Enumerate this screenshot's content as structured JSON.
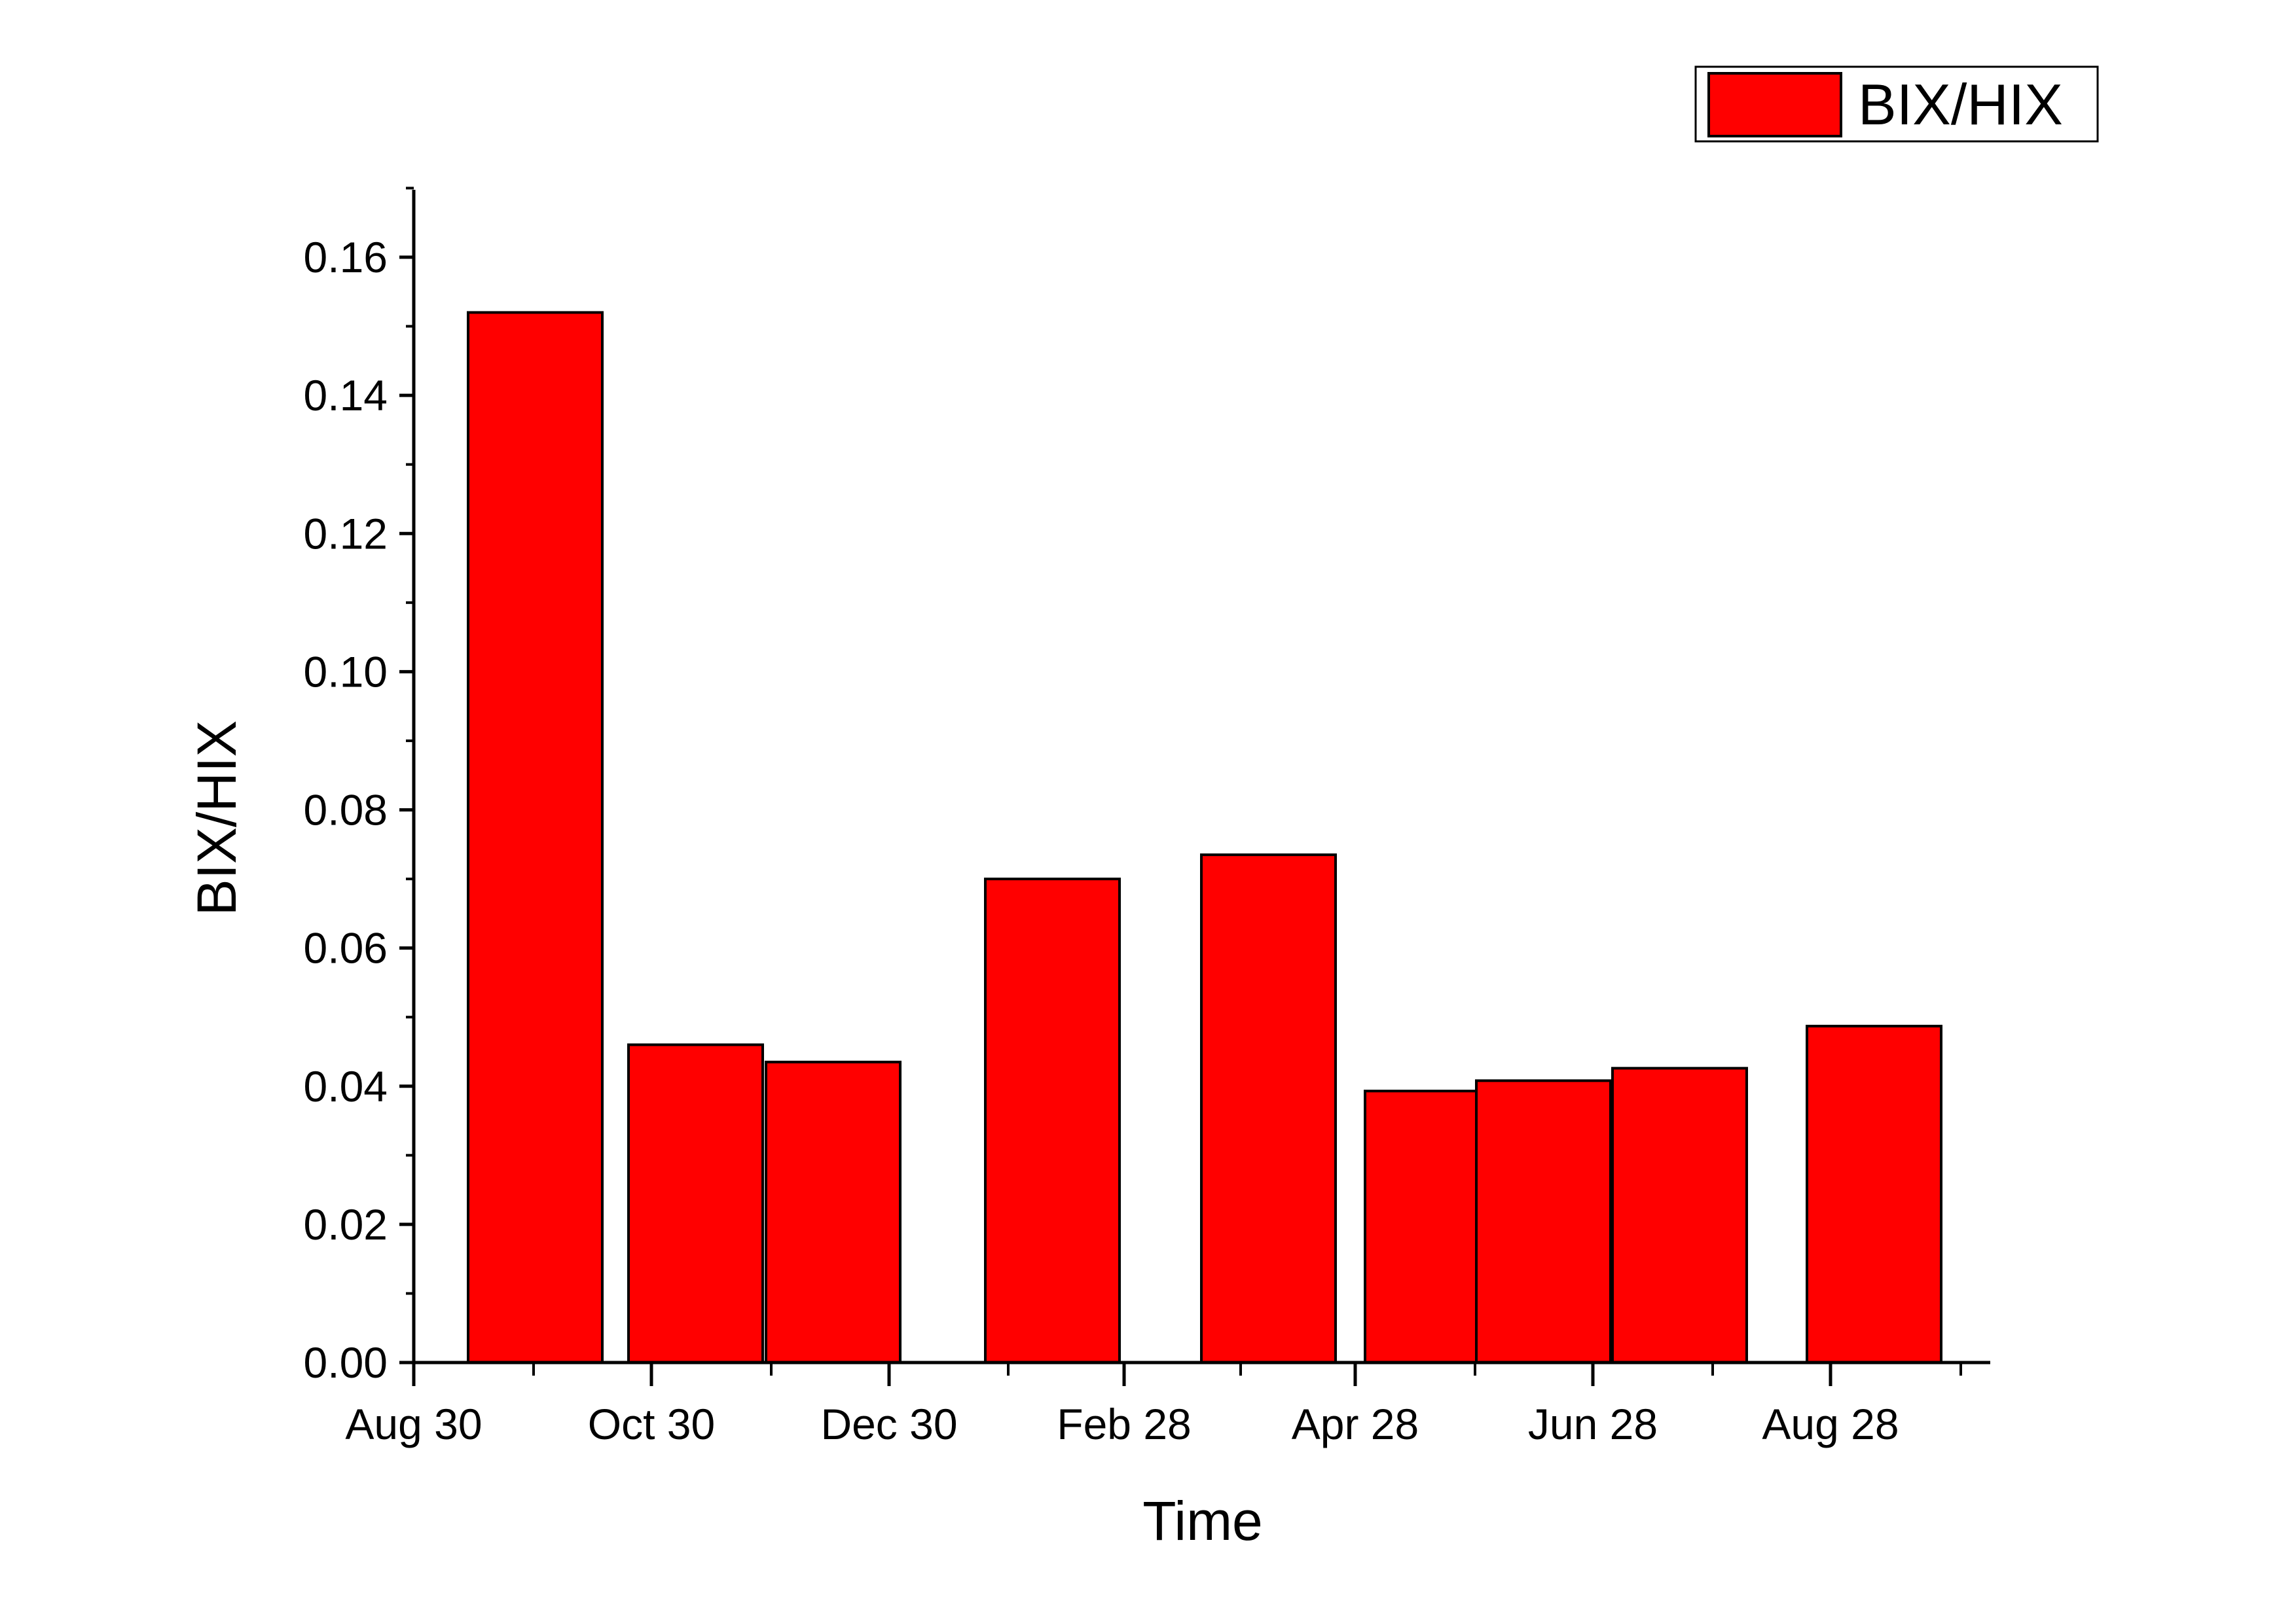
{
  "chart_data": {
    "type": "bar",
    "xlabel": "Time",
    "ylabel": "BIX/HIX",
    "x_tick_labels": [
      "Aug 30",
      "Oct 30",
      "Dec 30",
      "Feb 28",
      "Apr 28",
      "Jun 28",
      "Aug 28"
    ],
    "y_tick_labels": [
      "0.00",
      "0.02",
      "0.04",
      "0.06",
      "0.08",
      "0.10",
      "0.12",
      "0.14",
      "0.16"
    ],
    "ylim": [
      0,
      0.17
    ],
    "legend": {
      "position": "top-right",
      "entries": [
        "BIX/HIX"
      ]
    },
    "grid": false,
    "bar_color": "#ff0000",
    "series": [
      {
        "name": "BIX/HIX",
        "values": [
          0.152,
          0.046,
          0.0435,
          0.07,
          0.0735,
          0.0393,
          0.0408,
          0.0426,
          0.0487
        ]
      }
    ]
  }
}
